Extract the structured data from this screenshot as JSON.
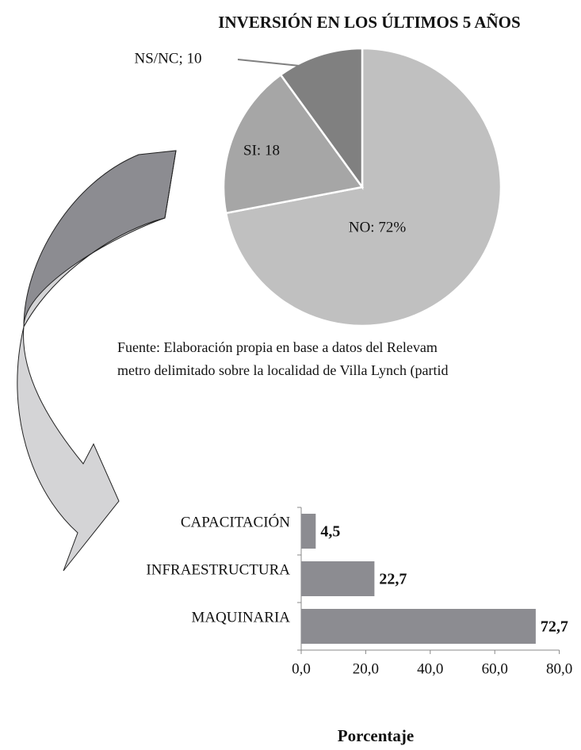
{
  "chart_data": [
    {
      "type": "pie",
      "title": "INVERSIÓN EN LOS ÚLTIMOS 5 AÑOS",
      "categories": [
        "NO",
        "SI",
        "NS/NC"
      ],
      "values": [
        72,
        18,
        10
      ],
      "value_labels": [
        "NO: 72%",
        "SI: 18",
        "NS/NC; 10"
      ],
      "colors": [
        "#c0c0c0",
        "#a6a6a6",
        "#808080"
      ]
    },
    {
      "type": "hbar",
      "categories": [
        "CAPACITACIÓN",
        "INFRAESTRUCTURA",
        "MAQUINARIA"
      ],
      "values": [
        4.5,
        22.7,
        72.7
      ],
      "value_labels": [
        "4,5",
        "22,7",
        "72,7"
      ],
      "color": "#8c8c91",
      "xlim": [
        0,
        80
      ],
      "xticks": [
        {
          "value": 0,
          "label": "0,0"
        },
        {
          "value": 20,
          "label": "20,0"
        },
        {
          "value": 40,
          "label": "40,0"
        },
        {
          "value": 60,
          "label": "60,0"
        },
        {
          "value": 80,
          "label": "80,0"
        }
      ],
      "xlabel": "Porcentaje"
    }
  ],
  "source": [
    "Fuente: Elaboración propia en base a datos del Relevam",
    "metro delimitado sobre la localidad de Villa Lynch (partid"
  ]
}
